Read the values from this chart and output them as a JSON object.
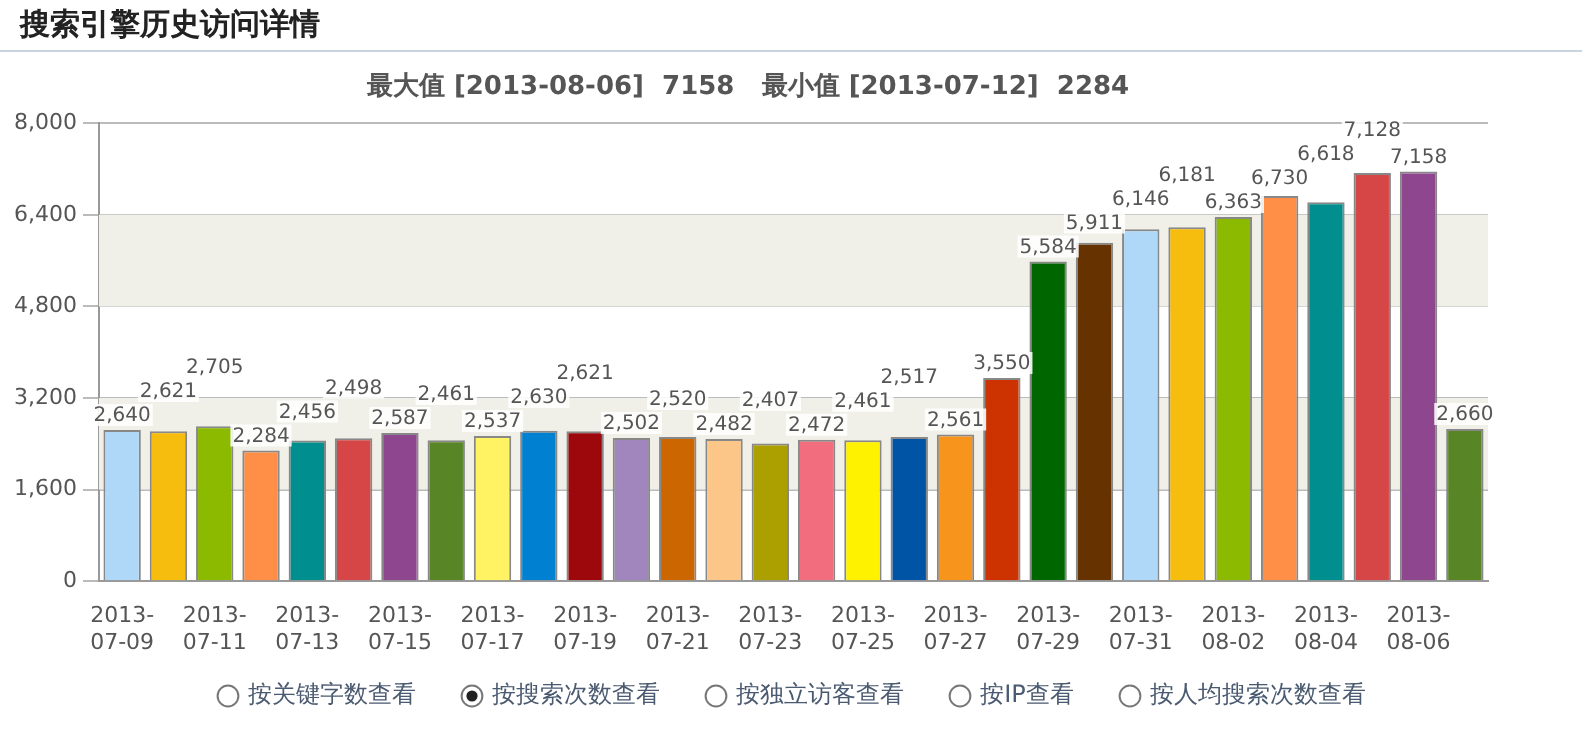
{
  "chart_data": {
    "type": "bar",
    "title": "搜索引擎历史访问详情",
    "subtitle": "最大值 [2013-08-06]  7158   最小值 [2013-07-12]  2284",
    "categories": [
      "2013-07-09",
      null,
      "2013-07-11",
      null,
      "2013-07-13",
      null,
      "2013-07-15",
      null,
      "2013-07-17",
      null,
      "2013-07-19",
      null,
      "2013-07-21",
      null,
      "2013-07-23",
      null,
      "2013-07-25",
      null,
      "2013-07-27",
      null,
      "2013-07-29",
      null,
      "2013-07-31",
      null,
      "2013-08-02",
      null,
      "2013-08-04",
      null,
      "2013-08-06",
      null
    ],
    "values": [
      2640,
      2621,
      2705,
      2284,
      2456,
      2498,
      2587,
      2461,
      2537,
      2630,
      2621,
      2502,
      2520,
      2482,
      2407,
      2472,
      2461,
      2517,
      2561,
      3550,
      5584,
      5911,
      6146,
      6181,
      6363,
      6730,
      6618,
      7128,
      7158,
      2660
    ],
    "value_labels": [
      "2,640",
      "2,621",
      "2,705",
      "2,284",
      "2,456",
      "2,498",
      "2,587",
      "2,461",
      "2,537",
      "2,630",
      "2,621",
      "2,502",
      "2,520",
      "2,482",
      "2,407",
      "2,472",
      "2,461",
      "2,517",
      "2,561",
      "3,550",
      "5,584",
      "5,911",
      "6,146",
      "6,181",
      "6,363",
      "6,730",
      "6,618",
      "7,128",
      "7,158",
      "2,660"
    ],
    "colors": [
      "#afd8f8",
      "#f6bd0f",
      "#8bba00",
      "#ff8e46",
      "#008e8e",
      "#d64646",
      "#8e468e",
      "#588526",
      "#fff263",
      "#0080d0",
      "#9d080d",
      "#a186be",
      "#cc6600",
      "#fdc689",
      "#aba000",
      "#f26d7d",
      "#fff200",
      "#0054a6",
      "#f7941c",
      "#cc3300",
      "#006600",
      "#663300",
      "#afd8f8",
      "#f6bd0f",
      "#8bba00",
      "#ff8e46",
      "#008e8e",
      "#d64646",
      "#8e468e",
      "#588526"
    ],
    "ylim": [
      0,
      8000
    ],
    "yticks": [
      0,
      {
        "value": 1600,
        "label": "1,600"
      },
      {
        "value": 3200,
        "label": "3,200"
      },
      {
        "value": 4800,
        "label": "4,800"
      },
      {
        "value": 6400,
        "label": "6,400"
      },
      {
        "value": 8000,
        "label": "8,000"
      }
    ],
    "grid": "y",
    "legend": false,
    "annotations": [
      "按关键字数查看",
      "按搜索次数查看",
      "按独立访客查看",
      "按IP查看",
      "按人均搜索次数查看"
    ]
  }
}
